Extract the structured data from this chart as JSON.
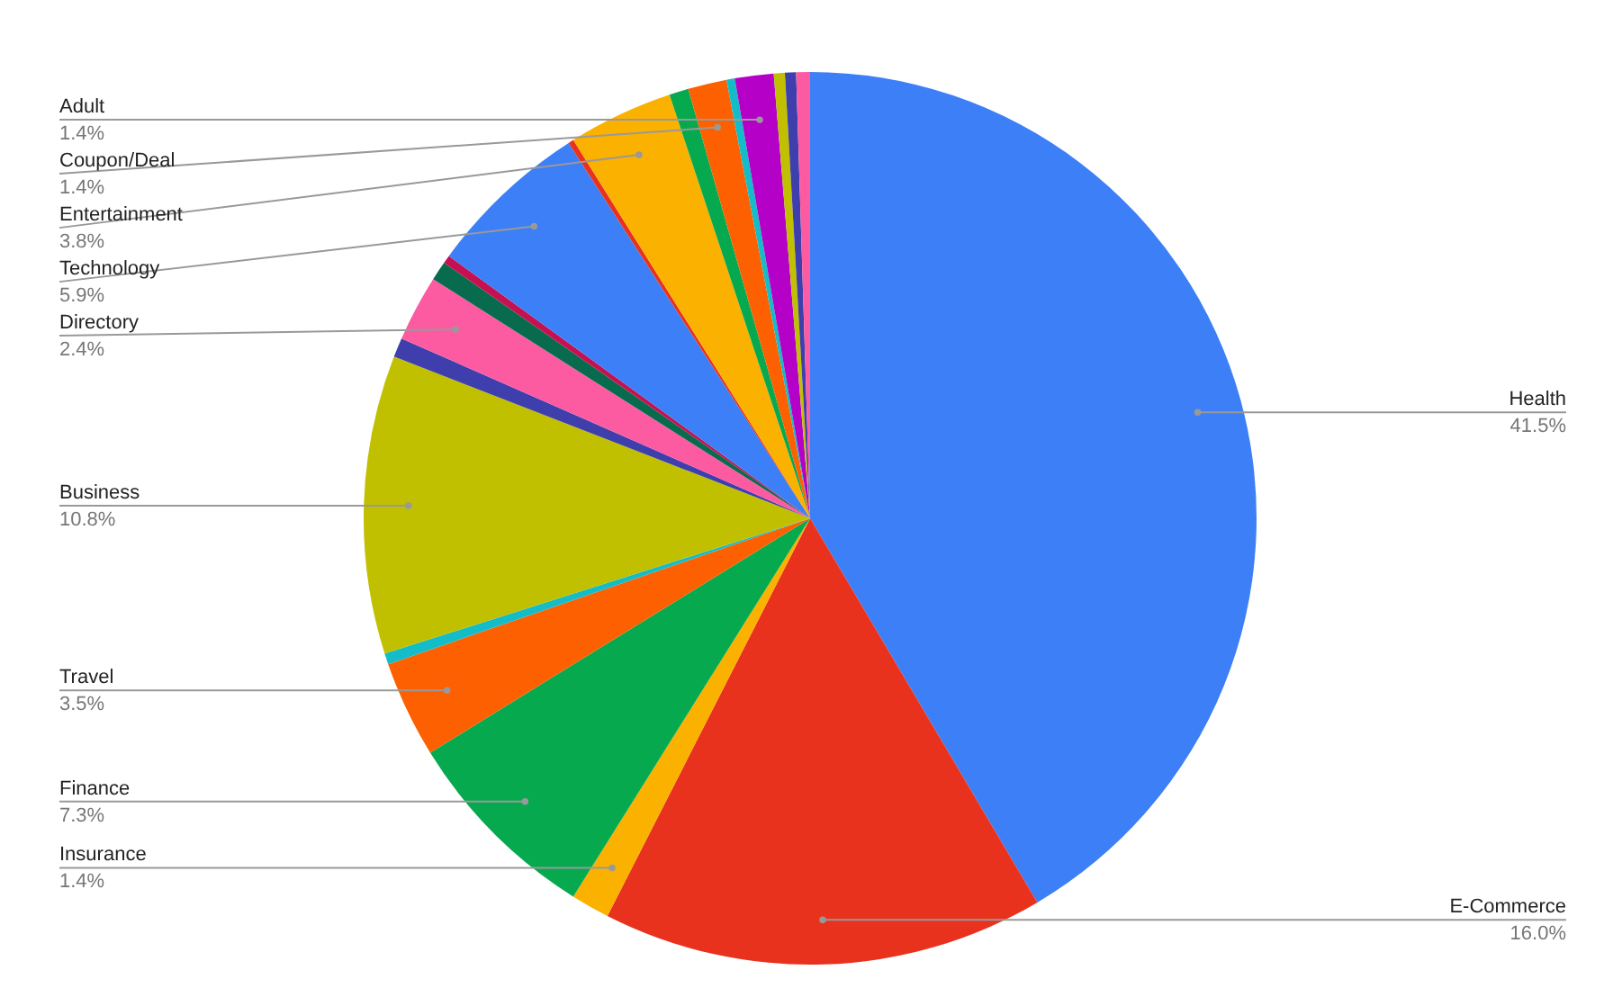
{
  "chart_data": {
    "type": "pie",
    "categories": [
      "Health",
      "E-Commerce",
      "Insurance",
      "Finance",
      "Travel",
      null,
      "Business",
      null,
      "Directory",
      null,
      null,
      "Technology",
      null,
      "Entertainment",
      null,
      "Coupon/Deal",
      null,
      "Adult",
      null,
      null,
      null
    ],
    "values": [
      41.5,
      16.0,
      1.4,
      7.3,
      3.5,
      0.4,
      10.8,
      0.7,
      2.4,
      0.7,
      0.3,
      5.9,
      0.2,
      3.8,
      0.7,
      1.4,
      0.3,
      1.4,
      0.4,
      0.4,
      0.5
    ],
    "value_labels": [
      "41.5%",
      "16.0%",
      "1.4%",
      "7.3%",
      "3.5%",
      null,
      "10.8%",
      null,
      "2.4%",
      null,
      null,
      "5.9%",
      null,
      "3.8%",
      null,
      "1.4%",
      null,
      "1.4%",
      null,
      null,
      null
    ],
    "colors": [
      "#3d7ff6",
      "#e8321e",
      "#fbb100",
      "#07a94f",
      "#fd6000",
      "#14bcc8",
      "#c1c000",
      "#3e3fac",
      "#fc5ba2",
      "#086b4e",
      "#c5114f",
      "#3d7ff6",
      "#e8321e",
      "#fbb100",
      "#07a94f",
      "#fd6000",
      "#14bcc8",
      "#b400c7",
      "#c1c000",
      "#3e3fac",
      "#fc5ba2"
    ]
  }
}
